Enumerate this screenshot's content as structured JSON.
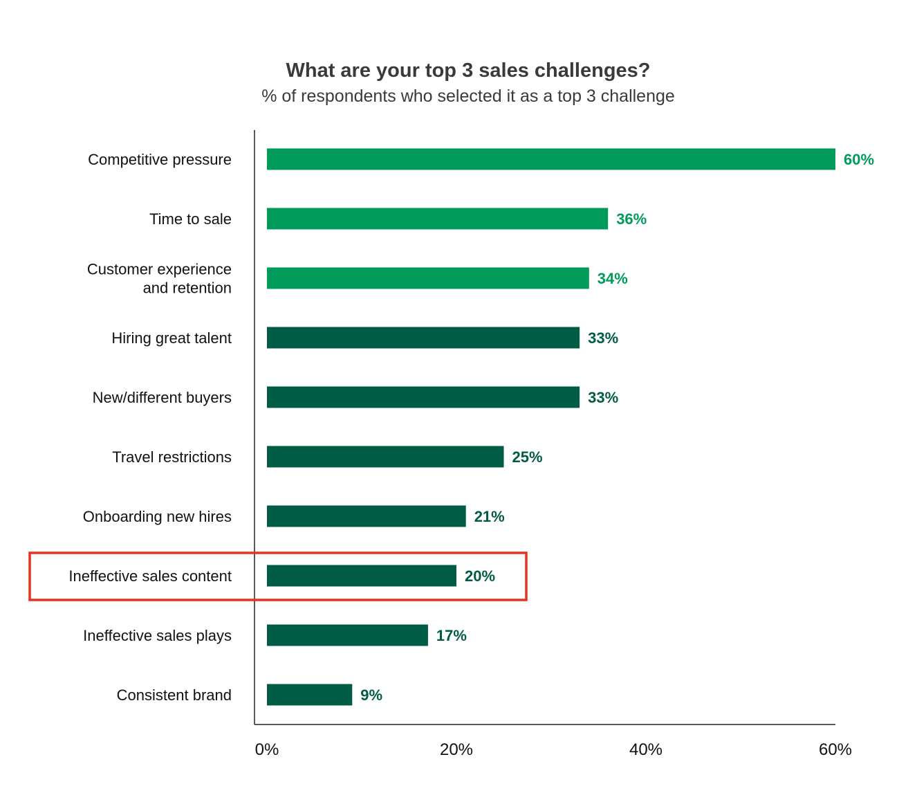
{
  "chart_data": {
    "type": "bar",
    "orientation": "horizontal",
    "title": "What are your top 3 sales challenges?",
    "subtitle": "% of respondents who selected it as a top 3 challenge",
    "categories": [
      [
        "Competitive pressure"
      ],
      [
        "Time to sale"
      ],
      [
        "Customer experience",
        "and retention"
      ],
      [
        "Hiring great talent"
      ],
      [
        "New/different buyers"
      ],
      [
        "Travel restrictions"
      ],
      [
        "Onboarding new hires"
      ],
      [
        "Ineffective sales content"
      ],
      [
        "Ineffective sales plays"
      ],
      [
        "Consistent brand"
      ]
    ],
    "values": [
      60,
      36,
      34,
      33,
      33,
      25,
      21,
      20,
      17,
      9
    ],
    "value_labels": [
      "60%",
      "36%",
      "34%",
      "33%",
      "33%",
      "25%",
      "21%",
      "20%",
      "17%",
      "9%"
    ],
    "xlim": [
      0,
      60
    ],
    "x_ticks": [
      0,
      20,
      40,
      60
    ],
    "x_tick_labels": [
      "0%",
      "20%",
      "40%",
      "60%"
    ],
    "grid": false,
    "highlight_index": 7,
    "colors": {
      "top_group": "#009b5a",
      "rest_group": "#005c45",
      "highlight_box": "#e8321e",
      "axis": "#222222"
    },
    "top_group_count": 3
  }
}
